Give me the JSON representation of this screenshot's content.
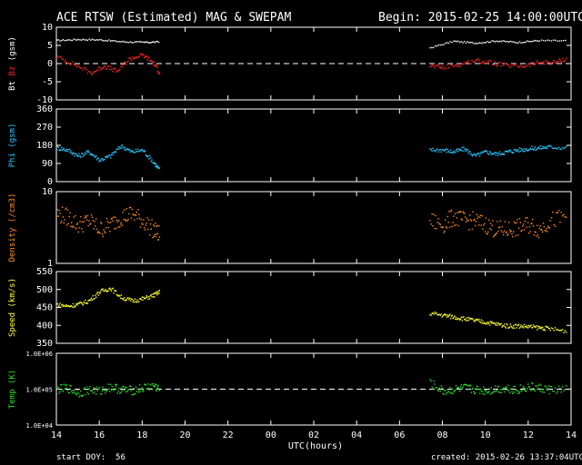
{
  "header": {
    "title": "ACE RTSW (Estimated) MAG & SWEPAM",
    "begin": "Begin: 2015-02-25 14:00:00UTC"
  },
  "footer": {
    "start_doy": "start DOY:  56",
    "created": "created: 2015-02-26 13:37:04UTC"
  },
  "colors": {
    "bt": "#ffffff",
    "bz": "#ff2020",
    "phi": "#20c8ff",
    "density": "#ff8c1a",
    "speed": "#ffff30",
    "temp": "#20e020"
  },
  "chart_data": {
    "type": "scatter",
    "x_axis": {
      "label": "UTC(hours)",
      "range_hours": [
        14,
        38
      ],
      "tick_labels": [
        "14",
        "16",
        "18",
        "20",
        "22",
        "00",
        "02",
        "04",
        "06",
        "08",
        "10",
        "12",
        "14"
      ]
    },
    "panels": [
      {
        "name": "mag",
        "type": "line",
        "ylabel": "Bt  Bz  (gsm)",
        "ylim": [
          -10,
          10
        ],
        "yticks": [
          "10",
          "5",
          "0",
          "-5",
          "-10"
        ],
        "dashed_zero": 0,
        "series": [
          {
            "name": "Bt",
            "color_key": "bt",
            "x": [
              14.0,
              15.0,
              16.0,
              17.0,
              18.0,
              18.8,
              31.4,
              32.5,
              33.5,
              34.5,
              35.5,
              36.5,
              37.8
            ],
            "y": [
              6.5,
              6.8,
              6.7,
              6.2,
              6.0,
              6.1,
              4.5,
              6.3,
              5.8,
              6.4,
              6.0,
              6.5,
              6.4
            ]
          },
          {
            "name": "Bz",
            "color_key": "bz",
            "x": [
              14.0,
              14.8,
              15.6,
              16.2,
              16.8,
              17.4,
              18.0,
              18.5,
              18.8,
              31.4,
              32.0,
              32.8,
              33.5,
              34.2,
              35.0,
              35.8,
              36.5,
              37.2,
              37.8
            ],
            "y": [
              2.0,
              0.0,
              -2.5,
              -0.5,
              -2.0,
              1.5,
              2.5,
              0.5,
              -2.5,
              -0.5,
              -1.0,
              0.0,
              1.0,
              0.5,
              -0.5,
              -0.5,
              0.5,
              0.5,
              1.5
            ]
          }
        ]
      },
      {
        "name": "phi",
        "type": "scatter",
        "ylabel": "Phi (gsm)",
        "ylim": [
          0,
          360
        ],
        "yticks": [
          "360",
          "270",
          "180",
          "90",
          "0"
        ],
        "series": [
          {
            "name": "Phi",
            "color_key": "phi",
            "x": [
              14.0,
              14.5,
              15.0,
              15.5,
              16.0,
              16.5,
              17.0,
              17.5,
              18.0,
              18.5,
              18.8,
              31.4,
              32.0,
              32.5,
              33.0,
              33.5,
              34.0,
              34.5,
              35.0,
              35.5,
              36.0,
              36.5,
              37.0,
              37.8
            ],
            "y": [
              170,
              160,
              130,
              150,
              110,
              130,
              180,
              150,
              160,
              100,
              60,
              160,
              160,
              150,
              165,
              130,
              150,
              140,
              150,
              160,
              165,
              170,
              175,
              170
            ]
          }
        ]
      },
      {
        "name": "density",
        "type": "scatter",
        "log": true,
        "ylabel": "Density (/cm3)",
        "ylim": [
          1,
          10
        ],
        "yticks": [
          "10",
          "1"
        ],
        "series": [
          {
            "name": "Density",
            "color_key": "density",
            "x": [
              14.0,
              14.5,
              15.0,
              15.5,
              16.0,
              16.5,
              17.0,
              17.5,
              18.0,
              18.5,
              18.8,
              31.4,
              32.0,
              32.5,
              33.0,
              33.5,
              34.0,
              34.5,
              35.0,
              35.5,
              36.0,
              36.5,
              37.0,
              37.8
            ],
            "y": [
              5.0,
              4.5,
              3.5,
              4.0,
              3.0,
              3.5,
              4.5,
              5.0,
              4.0,
              3.0,
              2.5,
              4.0,
              3.5,
              4.5,
              4.0,
              4.0,
              3.5,
              3.0,
              3.0,
              3.2,
              3.5,
              3.0,
              4.0,
              4.5
            ]
          }
        ]
      },
      {
        "name": "speed",
        "type": "scatter",
        "ylabel": "Speed (km/s)",
        "ylim": [
          350,
          550
        ],
        "yticks": [
          "550",
          "500",
          "450",
          "400",
          "350"
        ],
        "series": [
          {
            "name": "Speed",
            "color_key": "speed",
            "x": [
              14.0,
              14.5,
              15.0,
              15.5,
              16.0,
              16.5,
              17.0,
              17.5,
              18.0,
              18.5,
              18.8,
              31.4,
              32.0,
              32.5,
              33.0,
              33.5,
              34.0,
              34.5,
              35.0,
              35.5,
              36.0,
              36.5,
              37.0,
              37.8
            ],
            "y": [
              460,
              455,
              460,
              470,
              495,
              505,
              480,
              470,
              475,
              485,
              495,
              435,
              430,
              425,
              420,
              415,
              410,
              405,
              400,
              400,
              398,
              395,
              392,
              385
            ]
          }
        ]
      },
      {
        "name": "temp",
        "type": "scatter",
        "log": true,
        "ylabel": "Temp (K)",
        "ylim": [
          10000,
          1000000
        ],
        "yticks": [
          "1.0E+06",
          "1.0E+05",
          "1.0E+04"
        ],
        "dashed_level": 100000,
        "series": [
          {
            "name": "Temp",
            "color_key": "temp",
            "x": [
              14.0,
              14.5,
              15.0,
              15.5,
              16.0,
              16.5,
              17.0,
              17.5,
              18.0,
              18.5,
              18.8,
              31.4,
              32.0,
              32.5,
              33.0,
              33.5,
              34.0,
              34.5,
              35.0,
              35.5,
              36.0,
              36.5,
              37.0,
              37.8
            ],
            "y": [
              100000,
              110000,
              80000,
              100000,
              90000,
              120000,
              100000,
              95000,
              110000,
              130000,
              100000,
              150000,
              90000,
              100000,
              110000,
              100000,
              95000,
              105000,
              110000,
              100000,
              120000,
              110000,
              100000,
              100000
            ]
          }
        ]
      }
    ]
  }
}
